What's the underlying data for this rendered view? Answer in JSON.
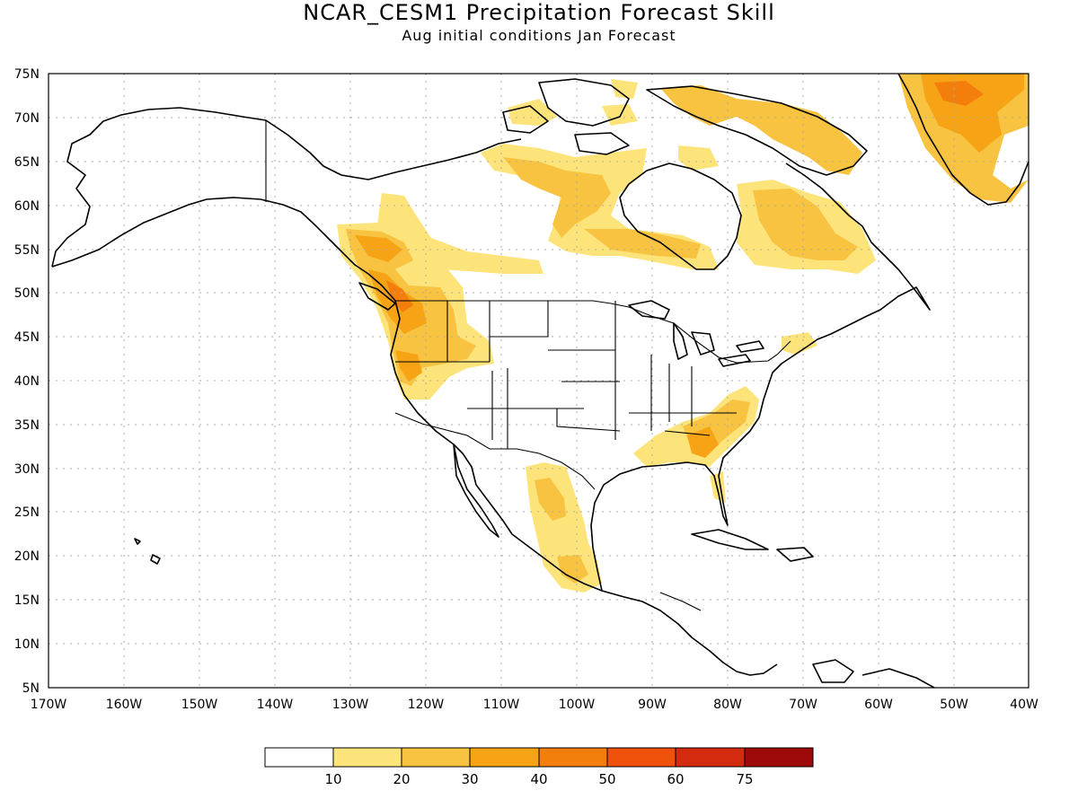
{
  "title": "NCAR_CESM1 Precipitation Forecast Skill",
  "subtitle": "Aug initial conditions  Jan Forecast",
  "lat_labels": [
    "75N",
    "70N",
    "65N",
    "60N",
    "55N",
    "50N",
    "45N",
    "40N",
    "35N",
    "30N",
    "25N",
    "20N",
    "15N",
    "10N",
    "5N"
  ],
  "lon_labels": [
    "170W",
    "160W",
    "150W",
    "140W",
    "130W",
    "120W",
    "110W",
    "100W",
    "90W",
    "80W",
    "70W",
    "60W",
    "50W",
    "40W"
  ],
  "legend": {
    "bins": [
      {
        "color": "#ffffff",
        "label": "10"
      },
      {
        "color": "#fde47a",
        "label": "20"
      },
      {
        "color": "#f8c341",
        "label": "30"
      },
      {
        "color": "#f6a316",
        "label": "40"
      },
      {
        "color": "#f47e0c",
        "label": "50"
      },
      {
        "color": "#ef500a",
        "label": "60"
      },
      {
        "color": "#d42a0f",
        "label": "75"
      },
      {
        "color": "#9e0a0a",
        "label": ""
      }
    ]
  },
  "colors": {
    "skill_10_20": "#fde47a",
    "skill_20_30": "#f8c341",
    "skill_30_40": "#f6a316",
    "skill_40_50": "#f47e0c",
    "grid": "#aaaaaa"
  }
}
